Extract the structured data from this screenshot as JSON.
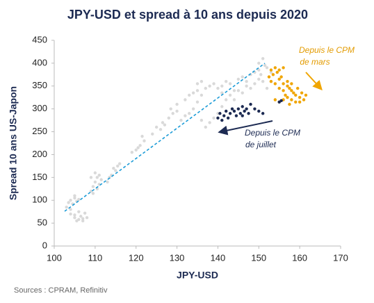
{
  "chart_data": {
    "type": "scatter",
    "title": "JPY-USD et spread à 10 ans depuis 2020",
    "x_label": "JPY-USD",
    "y_label": "Spread 10 ans US-Japon",
    "source": "Sources : CPRAM, Refinitiv",
    "annotations": [
      "Depuis le CPM",
      "de mars",
      "Depuis le CPM",
      "de juillet"
    ],
    "xlim": [
      100,
      170
    ],
    "xticks": [
      100,
      110,
      120,
      130,
      140,
      150,
      160,
      170
    ],
    "ylim": [
      0,
      450
    ],
    "yticks": [
      0,
      50,
      100,
      150,
      200,
      250,
      300,
      350,
      400,
      450
    ],
    "series": [
      {
        "color": "#d9d9d9",
        "x": [
          103,
          103.5,
          104,
          104.5,
          105,
          104,
          105,
          106,
          105.5,
          104,
          105,
          105.5,
          106,
          106.5,
          107,
          107.5,
          106,
          105,
          107,
          108,
          109,
          109.5,
          110,
          110.5,
          111,
          110,
          111.5,
          109,
          110.5,
          111,
          109.5,
          113,
          114,
          115,
          115.5,
          116,
          114.5,
          113.5,
          119,
          120,
          121,
          122,
          121.5,
          120.5,
          124,
          125,
          126,
          127,
          128,
          129,
          130,
          126.5,
          128.5,
          130,
          131,
          132,
          133,
          132,
          133,
          134,
          135,
          136,
          137,
          138,
          139,
          140,
          134,
          135,
          136,
          137,
          138,
          139,
          140,
          141,
          135,
          136,
          141,
          142,
          143,
          144,
          145,
          146,
          147,
          148,
          149,
          150,
          143,
          144,
          145,
          146,
          142,
          147,
          148,
          141,
          150,
          149,
          150,
          151,
          151.5,
          152,
          150.5,
          152.5,
          153,
          151,
          152,
          153
        ],
        "values": [
          85,
          95,
          100,
          92,
          105,
          80,
          110,
          102,
          98,
          70,
          62,
          55,
          58,
          65,
          60,
          72,
          75,
          68,
          55,
          62,
          120,
          130,
          140,
          150,
          155,
          160,
          145,
          150,
          125,
          135,
          115,
          140,
          155,
          165,
          175,
          180,
          170,
          150,
          205,
          210,
          220,
          230,
          240,
          215,
          245,
          260,
          255,
          265,
          280,
          290,
          295,
          270,
          300,
          310,
          275,
          285,
          290,
          320,
          330,
          335,
          340,
          330,
          345,
          350,
          355,
          345,
          300,
          315,
          275,
          260,
          270,
          280,
          290,
          305,
          355,
          360,
          350,
          360,
          355,
          340,
          365,
          370,
          360,
          375,
          380,
          385,
          330,
          320,
          340,
          335,
          320,
          350,
          345,
          335,
          365,
          355,
          400,
          410,
          395,
          390,
          375,
          370,
          360,
          360,
          345,
          380
        ]
      },
      {
        "color": "#f0a500",
        "x": [
          152.5,
          153,
          153.5,
          154,
          154.5,
          155,
          155.5,
          156,
          153,
          154,
          155,
          156,
          156.5,
          157,
          157.5,
          158,
          158.5,
          159,
          156,
          157,
          158,
          159,
          160,
          161,
          160.5,
          161.5,
          157,
          156,
          155,
          154,
          155,
          159.5,
          158,
          157.5,
          160
        ],
        "values": [
          370,
          385,
          375,
          390,
          380,
          385,
          370,
          390,
          360,
          355,
          365,
          340,
          330,
          350,
          345,
          340,
          335,
          330,
          320,
          325,
          320,
          315,
          325,
          320,
          335,
          330,
          360,
          355,
          345,
          320,
          315,
          345,
          355,
          310,
          315
        ]
      },
      {
        "color": "#1c2a52",
        "x": [
          140,
          140.5,
          141,
          141.5,
          142,
          142.5,
          143,
          143.5,
          144,
          144.5,
          145,
          145.5,
          146,
          146.5,
          147,
          147.5,
          148,
          149,
          150,
          151,
          155,
          155.5,
          146
        ],
        "values": [
          280,
          290,
          275,
          285,
          295,
          280,
          290,
          300,
          295,
          285,
          300,
          290,
          305,
          295,
          300,
          290,
          310,
          300,
          295,
          290,
          315,
          318,
          285
        ]
      }
    ]
  }
}
